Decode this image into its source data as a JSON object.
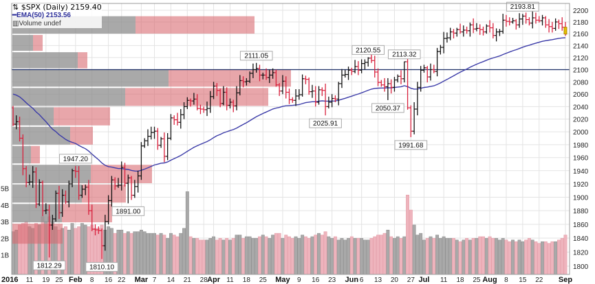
{
  "legend": {
    "symbol_line": "$SPX (Daily) 2159.40",
    "ema_line": "EMA(50) 2153.56",
    "volume_line": "Volume undef"
  },
  "colors": {
    "up": "#111111",
    "down": "#d8203c",
    "ema": "#3b3ba8",
    "hline": "#1c2f66",
    "vol_up": "#a9a9a9",
    "vol_down": "#eeb4bd",
    "profile_up": "#8c8c8c",
    "profile_down": "#d96a72",
    "last_bar": "#e6bd00"
  },
  "chart_data": {
    "type": "ohlc",
    "title": "$SPX (Daily)",
    "last_close": 2159.4,
    "ema_period": 50,
    "ema_last": 2153.56,
    "ema_seed": 2062,
    "ylim": [
      1800,
      2200
    ],
    "yscale": "log",
    "yticks": [
      1800,
      1820,
      1840,
      1860,
      1880,
      1900,
      1920,
      1940,
      1960,
      1980,
      2000,
      2020,
      2040,
      2060,
      2080,
      2100,
      2120,
      2140,
      2160,
      2180,
      2200
    ],
    "horizontal_line": 2100,
    "closes": [
      2012,
      2016,
      1990,
      1943,
      1922,
      1923,
      1938,
      1890,
      1922,
      1880,
      1881,
      1859,
      1868,
      1906,
      1877,
      1903,
      1893,
      1920,
      1940,
      1939,
      1903,
      1912,
      1915,
      1880,
      1853,
      1852,
      1851,
      1829,
      1864,
      1895,
      1926,
      1917,
      1918,
      1945,
      1921,
      1929,
      1903,
      1916,
      1932,
      1978,
      1986,
      1993,
      1999,
      2001,
      1979,
      1989,
      1962,
      1990,
      2022,
      2019,
      2015,
      2027,
      2040,
      2050,
      2049,
      2052,
      2037,
      2036,
      2035,
      2037,
      2056,
      2073,
      2066,
      2045,
      2063,
      2042,
      2047,
      2041,
      2062,
      2082,
      2080,
      2081,
      2094,
      2100,
      2102,
      2091,
      2091,
      2087,
      2091,
      2095,
      2075,
      2065,
      2081,
      2063,
      2051,
      2050,
      2057,
      2059,
      2085,
      2084,
      2064,
      2065,
      2047,
      2067,
      2066,
      2040,
      2047,
      2053,
      2052,
      2077,
      2091,
      2092,
      2099,
      2097,
      2105,
      2099,
      2110,
      2112,
      2119,
      2115,
      2096,
      2079,
      2075,
      2072,
      2077,
      2071,
      2083,
      2089,
      2085,
      2113,
      2038,
      2001,
      2036,
      2071,
      2099,
      2103,
      2088,
      2100,
      2097,
      2130,
      2137,
      2152,
      2153,
      2163,
      2161,
      2167,
      2163,
      2166,
      2165,
      2175,
      2168,
      2169,
      2167,
      2163,
      2173,
      2170,
      2157,
      2163,
      2164,
      2183,
      2181,
      2180,
      2182,
      2175,
      2185,
      2190,
      2184,
      2178,
      2187,
      2183,
      2182,
      2187,
      2175,
      2172,
      2169,
      2180,
      2177,
      2171,
      2159.4
    ],
    "volumes_billions": [
      2.4,
      2.5,
      2.8,
      2.9,
      3.0,
      2.7,
      2.6,
      2.9,
      2.8,
      3.3,
      3.0,
      3.3,
      3.0,
      2.7,
      2.5,
      2.6,
      2.7,
      2.5,
      2.9,
      2.6,
      2.7,
      2.9,
      2.8,
      2.7,
      2.8,
      2.6,
      2.6,
      2.8,
      2.5,
      2.7,
      2.6,
      2.3,
      2.5,
      2.5,
      2.3,
      2.4,
      2.3,
      2.4,
      2.4,
      2.5,
      2.4,
      2.3,
      2.3,
      2.3,
      2.2,
      2.3,
      2.2,
      2.0,
      2.3,
      2.2,
      2.1,
      2.3,
      2.6,
      4.8,
      2.1,
      2.0,
      2.0,
      1.9,
      1.9,
      1.9,
      2.0,
      2.1,
      1.9,
      2.0,
      1.9,
      2.0,
      1.9,
      2.0,
      2.2,
      2.2,
      2.0,
      2.1,
      2.1,
      2.0,
      2.0,
      2.1,
      2.2,
      2.1,
      2.0,
      2.2,
      2.3,
      2.3,
      2.0,
      2.2,
      2.1,
      2.0,
      2.1,
      2.0,
      2.2,
      2.1,
      2.0,
      2.1,
      2.2,
      2.3,
      2.2,
      2.4,
      2.1,
      2.0,
      2.1,
      1.9,
      2.0,
      1.9,
      2.0,
      2.1,
      2.0,
      2.0,
      2.0,
      1.9,
      1.9,
      2.0,
      2.1,
      2.2,
      2.2,
      2.3,
      2.5,
      2.1,
      2.0,
      2.1,
      2.0,
      2.1,
      4.6,
      3.7,
      2.8,
      2.2,
      2.3,
      1.9,
      2.0,
      2.1,
      2.0,
      2.2,
      2.0,
      2.1,
      2.0,
      2.0,
      2.0,
      1.9,
      1.8,
      1.9,
      2.0,
      1.9,
      2.0,
      2.0,
      2.1,
      2.1,
      2.0,
      2.1,
      2.0,
      2.0,
      1.9,
      2.0,
      1.9,
      1.8,
      1.9,
      1.8,
      1.9,
      1.8,
      1.9,
      2.0,
      1.9,
      1.8,
      1.7,
      1.8,
      1.8,
      1.7,
      1.8,
      1.8,
      1.9,
      2.0,
      2.2
    ],
    "volume_ticks": [
      "1B",
      "2B",
      "3B",
      "4B",
      "5B"
    ],
    "volume_profile": [
      {
        "low": 2159,
        "high": 2191,
        "up": 17.9,
        "down": 17.3
      },
      {
        "low": 2130,
        "high": 2159,
        "up": 3.0,
        "down": 1.4
      },
      {
        "low": 2101,
        "high": 2130,
        "up": 9.5,
        "down": 1.4
      },
      {
        "low": 2071,
        "high": 2101,
        "up": 22.7,
        "down": 17.8
      },
      {
        "low": 2040,
        "high": 2071,
        "up": 16.4,
        "down": 20.8
      },
      {
        "low": 2009,
        "high": 2040,
        "up": 6.0,
        "down": 8.2
      },
      {
        "low": 1979,
        "high": 2009,
        "up": 8.4,
        "down": 3.3
      },
      {
        "low": 1950,
        "high": 1979,
        "up": 2.7,
        "down": 1.3
      },
      {
        "low": 1920,
        "high": 1950,
        "up": 11.4,
        "down": 8.9
      },
      {
        "low": 1891,
        "high": 1920,
        "up": 10.1,
        "down": 6.4
      },
      {
        "low": 1862,
        "high": 1891,
        "up": 7.2,
        "down": 7.3
      },
      {
        "low": 1831,
        "high": 1862,
        "up": 0,
        "down": 7.3
      }
    ],
    "annotations": [
      {
        "day": 11,
        "label": "1812.29",
        "value": 1812.29,
        "pos": "below"
      },
      {
        "day": 27,
        "label": "1810.10",
        "value": 1810.1,
        "pos": "below"
      },
      {
        "day": 19,
        "label": "1947.20",
        "value": 1947.2,
        "pos": "above"
      },
      {
        "day": 35,
        "label": "1891.00",
        "value": 1891.0,
        "pos": "below"
      },
      {
        "day": 74,
        "label": "2111.05",
        "value": 2111.05,
        "pos": "above"
      },
      {
        "day": 95,
        "label": "2025.91",
        "value": 2025.91,
        "pos": "below"
      },
      {
        "day": 108,
        "label": "2120.55",
        "value": 2120.55,
        "pos": "above"
      },
      {
        "day": 114,
        "label": "2050.37",
        "value": 2050.37,
        "pos": "below"
      },
      {
        "day": 119,
        "label": "2113.32",
        "value": 2113.32,
        "pos": "above"
      },
      {
        "day": 121,
        "label": "1991.68",
        "value": 1991.68,
        "pos": "below"
      },
      {
        "day": 155,
        "label": "2193.81",
        "value": 2193.81,
        "pos": "above"
      }
    ],
    "x_labels": [
      {
        "day": 0,
        "label": "2016",
        "major": true
      },
      {
        "day": 5,
        "label": "11"
      },
      {
        "day": 10,
        "label": "19"
      },
      {
        "day": 14,
        "label": "25"
      },
      {
        "day": 19,
        "label": "Feb",
        "major": true
      },
      {
        "day": 24,
        "label": "8"
      },
      {
        "day": 29,
        "label": "16"
      },
      {
        "day": 33,
        "label": "22"
      },
      {
        "day": 39,
        "label": "Mar",
        "major": true
      },
      {
        "day": 43,
        "label": "7"
      },
      {
        "day": 48,
        "label": "14"
      },
      {
        "day": 53,
        "label": "21"
      },
      {
        "day": 58,
        "label": "28"
      },
      {
        "day": 61,
        "label": "Apr",
        "major": true
      },
      {
        "day": 66,
        "label": "11"
      },
      {
        "day": 71,
        "label": "18"
      },
      {
        "day": 76,
        "label": "25"
      },
      {
        "day": 82,
        "label": "May",
        "major": true
      },
      {
        "day": 87,
        "label": "9"
      },
      {
        "day": 92,
        "label": "16"
      },
      {
        "day": 97,
        "label": "23"
      },
      {
        "day": 103,
        "label": "Jun",
        "major": true
      },
      {
        "day": 106,
        "label": "6"
      },
      {
        "day": 111,
        "label": "13"
      },
      {
        "day": 116,
        "label": "20"
      },
      {
        "day": 121,
        "label": "27"
      },
      {
        "day": 125,
        "label": "Jul",
        "major": true
      },
      {
        "day": 131,
        "label": "11"
      },
      {
        "day": 136,
        "label": "18"
      },
      {
        "day": 141,
        "label": "25"
      },
      {
        "day": 145,
        "label": "Aug",
        "major": true
      },
      {
        "day": 150,
        "label": "8"
      },
      {
        "day": 155,
        "label": "15"
      },
      {
        "day": 160,
        "label": "22"
      },
      {
        "day": 168,
        "label": "Sep",
        "major": true
      }
    ]
  }
}
